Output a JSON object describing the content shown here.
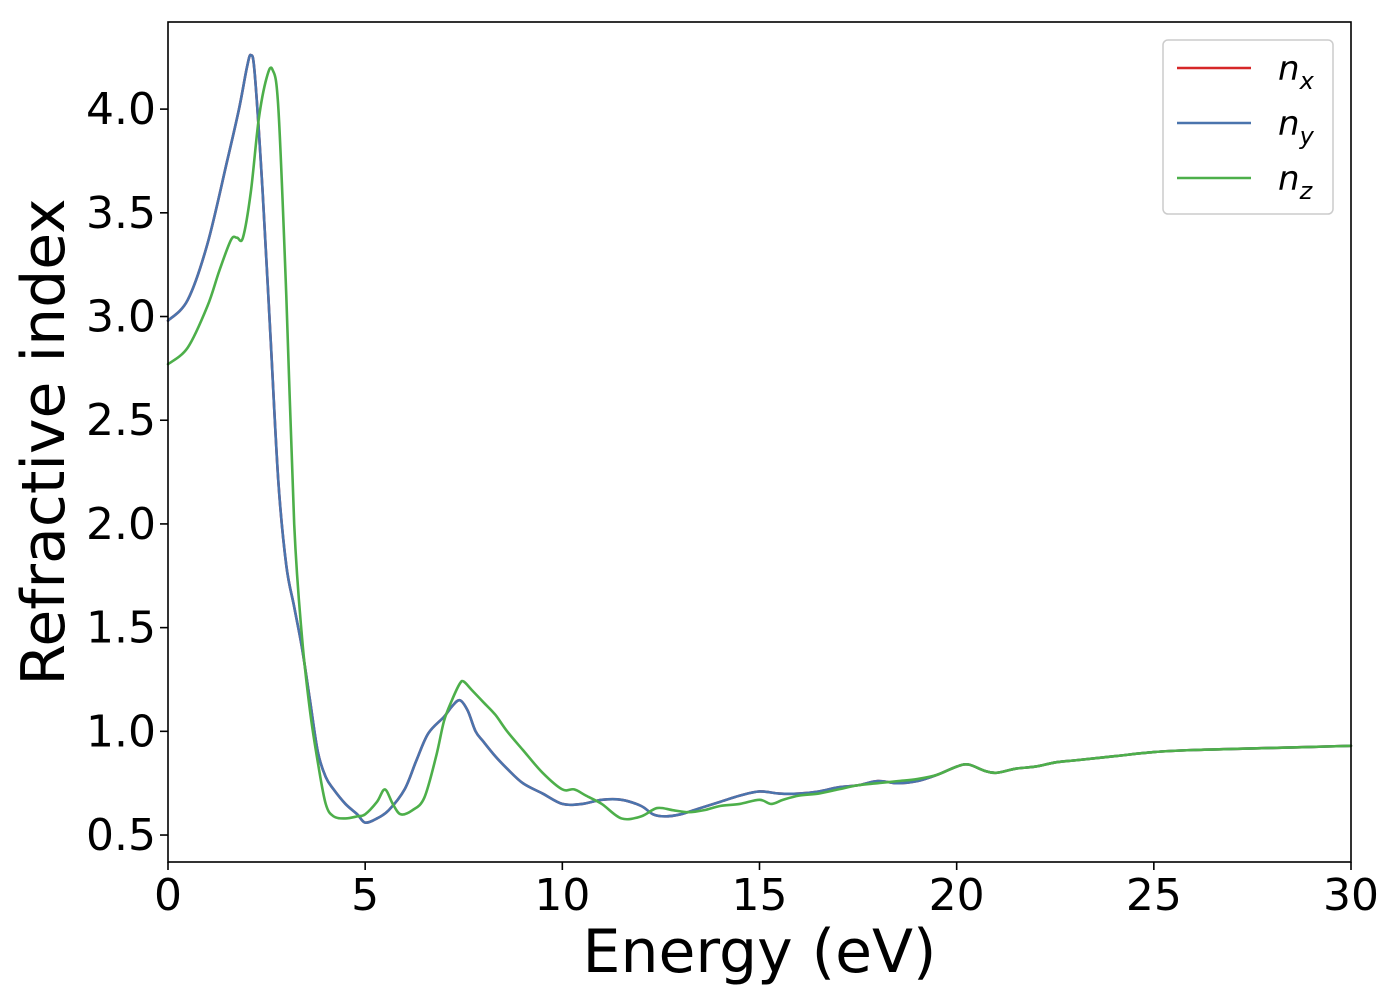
{
  "chart_data": {
    "type": "line",
    "title": "",
    "xlabel": "Energy (eV)",
    "ylabel": "Refractive index",
    "xlim": [
      0,
      30
    ],
    "ylim": [
      0.37,
      4.42
    ],
    "xticks": [
      0,
      5,
      10,
      15,
      20,
      25,
      30
    ],
    "yticks": [
      0.5,
      1.0,
      1.5,
      2.0,
      2.5,
      3.0,
      3.5,
      4.0
    ],
    "grid": false,
    "legend_position": "top-right",
    "series": [
      {
        "name": "n_x",
        "label_main": "n",
        "label_sub": "x",
        "color": "#d62728",
        "x": [
          0,
          0.5,
          1.0,
          1.5,
          1.8,
          2.0,
          2.1,
          2.2,
          2.4,
          2.6,
          2.8,
          3.0,
          3.2,
          3.4,
          3.6,
          3.8,
          4.0,
          4.2,
          4.5,
          4.8,
          5.0,
          5.3,
          5.6,
          6.0,
          6.3,
          6.6,
          7.0,
          7.2,
          7.4,
          7.6,
          7.8,
          8.0,
          8.3,
          8.6,
          9.0,
          9.5,
          10.0,
          10.5,
          11.0,
          11.5,
          12.0,
          12.3,
          12.6,
          13.0,
          13.5,
          14.0,
          14.5,
          15.0,
          15.5,
          16.0,
          16.5,
          17.0,
          17.5,
          18.0,
          18.5,
          19.0,
          19.5,
          20.0,
          20.3,
          20.7,
          21.0,
          21.5,
          22.0,
          22.5,
          23.0,
          24.0,
          25.0,
          26.0,
          27.0,
          28.0,
          29.0,
          30.0
        ],
        "y": [
          2.98,
          3.08,
          3.35,
          3.75,
          4.0,
          4.2,
          4.26,
          4.17,
          3.6,
          2.9,
          2.2,
          1.8,
          1.6,
          1.4,
          1.15,
          0.9,
          0.78,
          0.72,
          0.65,
          0.6,
          0.56,
          0.58,
          0.62,
          0.72,
          0.86,
          0.99,
          1.07,
          1.12,
          1.15,
          1.1,
          1.0,
          0.95,
          0.88,
          0.82,
          0.75,
          0.7,
          0.65,
          0.65,
          0.67,
          0.67,
          0.64,
          0.6,
          0.59,
          0.6,
          0.63,
          0.66,
          0.69,
          0.71,
          0.7,
          0.7,
          0.71,
          0.73,
          0.74,
          0.76,
          0.75,
          0.76,
          0.79,
          0.83,
          0.84,
          0.81,
          0.8,
          0.82,
          0.83,
          0.85,
          0.86,
          0.88,
          0.9,
          0.91,
          0.915,
          0.92,
          0.925,
          0.93
        ]
      },
      {
        "name": "n_y",
        "label_main": "n",
        "label_sub": "y",
        "color": "#4a74ad",
        "x": [
          0,
          0.5,
          1.0,
          1.5,
          1.8,
          2.0,
          2.1,
          2.2,
          2.4,
          2.6,
          2.8,
          3.0,
          3.2,
          3.4,
          3.6,
          3.8,
          4.0,
          4.2,
          4.5,
          4.8,
          5.0,
          5.3,
          5.6,
          6.0,
          6.3,
          6.6,
          7.0,
          7.2,
          7.4,
          7.6,
          7.8,
          8.0,
          8.3,
          8.6,
          9.0,
          9.5,
          10.0,
          10.5,
          11.0,
          11.5,
          12.0,
          12.3,
          12.6,
          13.0,
          13.5,
          14.0,
          14.5,
          15.0,
          15.5,
          16.0,
          16.5,
          17.0,
          17.5,
          18.0,
          18.5,
          19.0,
          19.5,
          20.0,
          20.3,
          20.7,
          21.0,
          21.5,
          22.0,
          22.5,
          23.0,
          24.0,
          25.0,
          26.0,
          27.0,
          28.0,
          29.0,
          30.0
        ],
        "y": [
          2.98,
          3.08,
          3.35,
          3.75,
          4.0,
          4.2,
          4.26,
          4.17,
          3.6,
          2.9,
          2.2,
          1.8,
          1.6,
          1.4,
          1.15,
          0.9,
          0.78,
          0.72,
          0.65,
          0.6,
          0.56,
          0.58,
          0.62,
          0.72,
          0.86,
          0.99,
          1.07,
          1.12,
          1.15,
          1.1,
          1.0,
          0.95,
          0.88,
          0.82,
          0.75,
          0.7,
          0.65,
          0.65,
          0.67,
          0.67,
          0.64,
          0.6,
          0.59,
          0.6,
          0.63,
          0.66,
          0.69,
          0.71,
          0.7,
          0.7,
          0.71,
          0.73,
          0.74,
          0.76,
          0.75,
          0.76,
          0.79,
          0.83,
          0.84,
          0.81,
          0.8,
          0.82,
          0.83,
          0.85,
          0.86,
          0.88,
          0.9,
          0.91,
          0.915,
          0.92,
          0.925,
          0.93
        ]
      },
      {
        "name": "n_z",
        "label_main": "n",
        "label_sub": "z",
        "color": "#4daf4a",
        "x": [
          0,
          0.5,
          1.0,
          1.3,
          1.6,
          1.75,
          1.9,
          2.1,
          2.3,
          2.5,
          2.65,
          2.8,
          3.0,
          3.2,
          3.4,
          3.6,
          3.8,
          4.0,
          4.2,
          4.5,
          4.8,
          5.0,
          5.3,
          5.5,
          5.7,
          5.9,
          6.2,
          6.5,
          6.8,
          7.0,
          7.2,
          7.4,
          7.5,
          7.7,
          8.0,
          8.3,
          8.6,
          9.0,
          9.5,
          10.0,
          10.3,
          10.6,
          11.0,
          11.5,
          12.0,
          12.4,
          12.8,
          13.2,
          13.6,
          14.0,
          14.5,
          15.0,
          15.3,
          15.6,
          16.0,
          16.5,
          17.0,
          17.5,
          18.0,
          18.5,
          19.0,
          19.5,
          20.0,
          20.3,
          20.7,
          21.0,
          21.5,
          22.0,
          22.5,
          23.0,
          24.0,
          25.0,
          26.0,
          27.0,
          28.0,
          29.0,
          30.0
        ],
        "y": [
          2.77,
          2.85,
          3.05,
          3.22,
          3.37,
          3.38,
          3.38,
          3.6,
          3.95,
          4.15,
          4.19,
          4.0,
          3.1,
          2.0,
          1.45,
          1.1,
          0.85,
          0.65,
          0.59,
          0.58,
          0.59,
          0.6,
          0.66,
          0.72,
          0.65,
          0.6,
          0.62,
          0.68,
          0.88,
          1.05,
          1.15,
          1.23,
          1.24,
          1.2,
          1.14,
          1.08,
          1.0,
          0.91,
          0.8,
          0.72,
          0.72,
          0.69,
          0.65,
          0.58,
          0.59,
          0.63,
          0.62,
          0.61,
          0.62,
          0.64,
          0.65,
          0.67,
          0.65,
          0.67,
          0.69,
          0.7,
          0.72,
          0.74,
          0.75,
          0.76,
          0.77,
          0.79,
          0.83,
          0.84,
          0.81,
          0.8,
          0.82,
          0.83,
          0.85,
          0.86,
          0.88,
          0.9,
          0.91,
          0.915,
          0.92,
          0.925,
          0.93
        ]
      }
    ]
  }
}
